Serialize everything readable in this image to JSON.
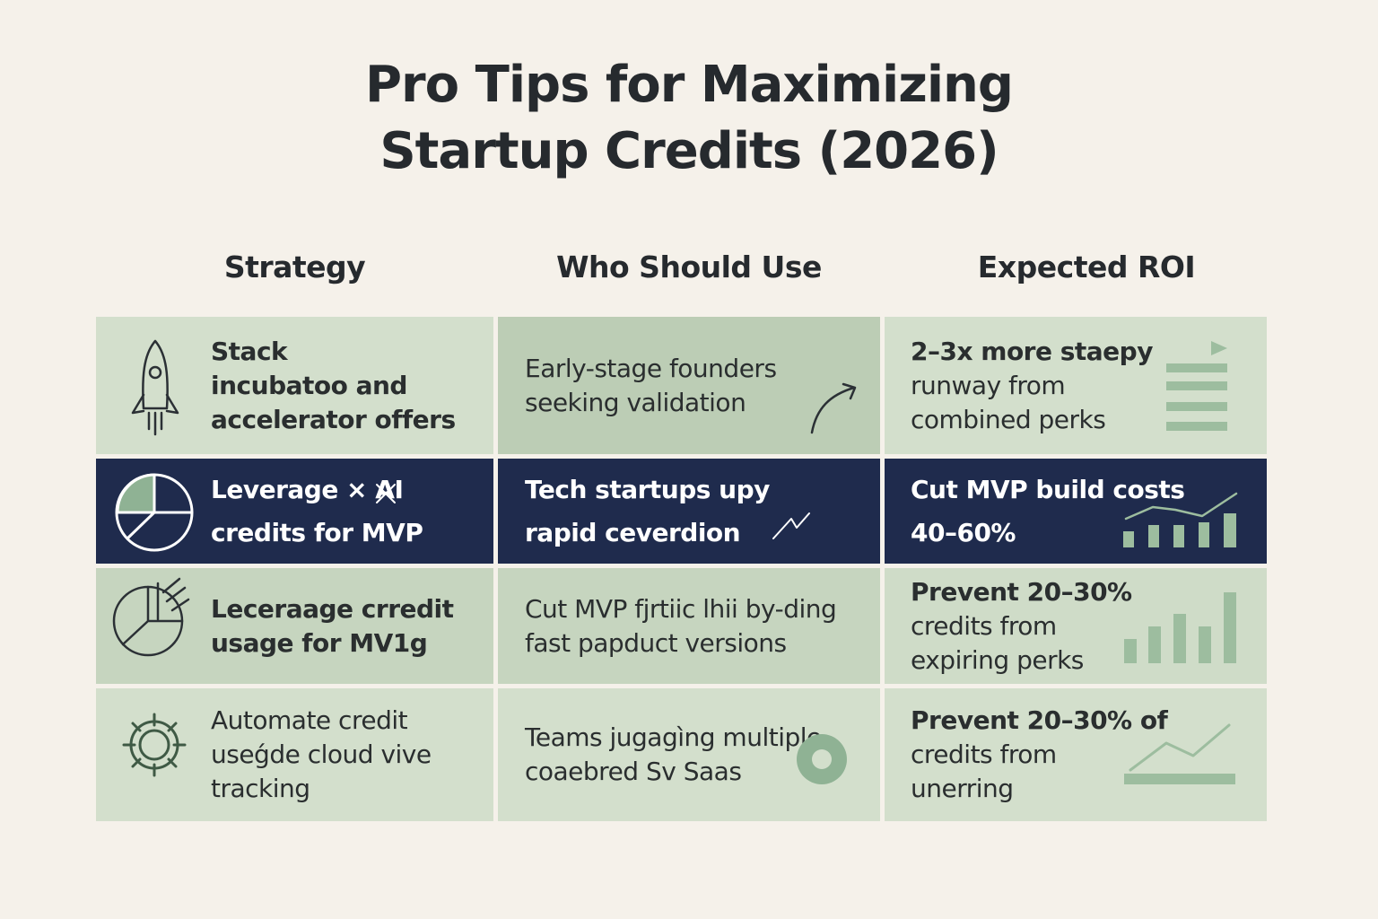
{
  "header": {
    "title": [
      "Pro Tips for Maximizing",
      "Startup Credits (2026)"
    ]
  },
  "table": {
    "columns": [
      "Strategy",
      "Who Should Use",
      "Expected ROI"
    ],
    "rows": [
      [
        [
          "Stack",
          "incubatoo and",
          "accelerator offers"
        ],
        [
          "Early-stage founders",
          "seeking validation"
        ],
        [
          "2–3x more staepy",
          "runway from",
          "combined perks"
        ]
      ],
      [
        [
          "Leverage × AI",
          "credits for MVP"
        ],
        [
          "Tech startups upy",
          "rapid ceverdion"
        ],
        [
          "Cut MVP build costs",
          "40–60%"
        ]
      ],
      [
        [
          "Leceraage crredit",
          "usage for MV1g"
        ],
        [
          "Cut MVP fjrtiic lhii by-ding",
          "fast papduct versions"
        ],
        [
          "Prevent 20–30%",
          "credits from",
          "expiring perks"
        ]
      ],
      [
        [
          "Automate credit",
          "useǵde cloud vive",
          "tracking"
        ],
        [
          "Teams jugagìng multiple",
          "coaebred Sv Saas"
        ],
        [
          "Prevent 20–30% of",
          "credits from",
          "unerring"
        ]
      ]
    ]
  }
}
